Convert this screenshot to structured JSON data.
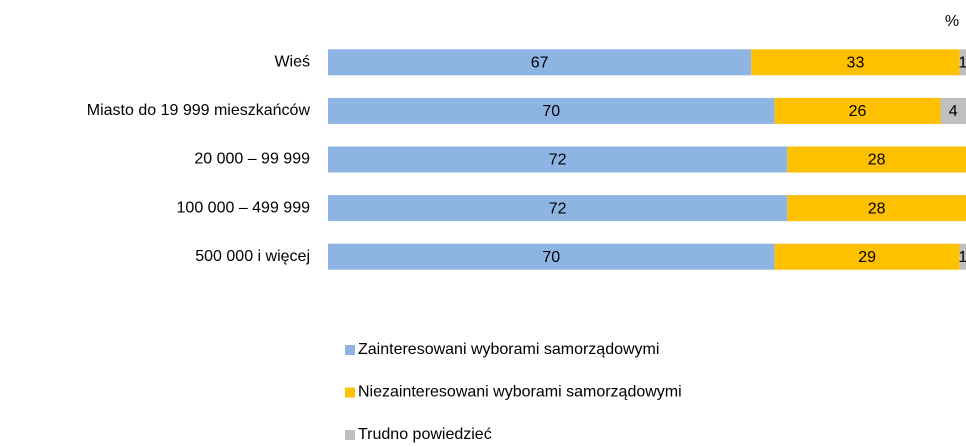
{
  "chart_data": {
    "type": "bar",
    "orientation": "horizontal",
    "stacking": "percent",
    "unit": "%",
    "categories": [
      "Wieś",
      "Miasto do 19 999 mieszkańców",
      "20 000 – 99 999",
      "100 000 – 499 999",
      "500 000 i więcej"
    ],
    "series": [
      {
        "name": "Zainteresowani wyborami samorządowymi",
        "color": "#8eb4e3",
        "values": [
          67,
          70,
          72,
          72,
          70
        ]
      },
      {
        "name": "Niezainteresowani wyborami samorządowymi",
        "color": "#ffc000",
        "values": [
          33,
          26,
          28,
          28,
          29
        ]
      },
      {
        "name": "Trudno powiedzieć",
        "color": "#bfbfbf",
        "values": [
          1,
          4,
          null,
          null,
          1
        ]
      }
    ],
    "legend": "bottom"
  }
}
